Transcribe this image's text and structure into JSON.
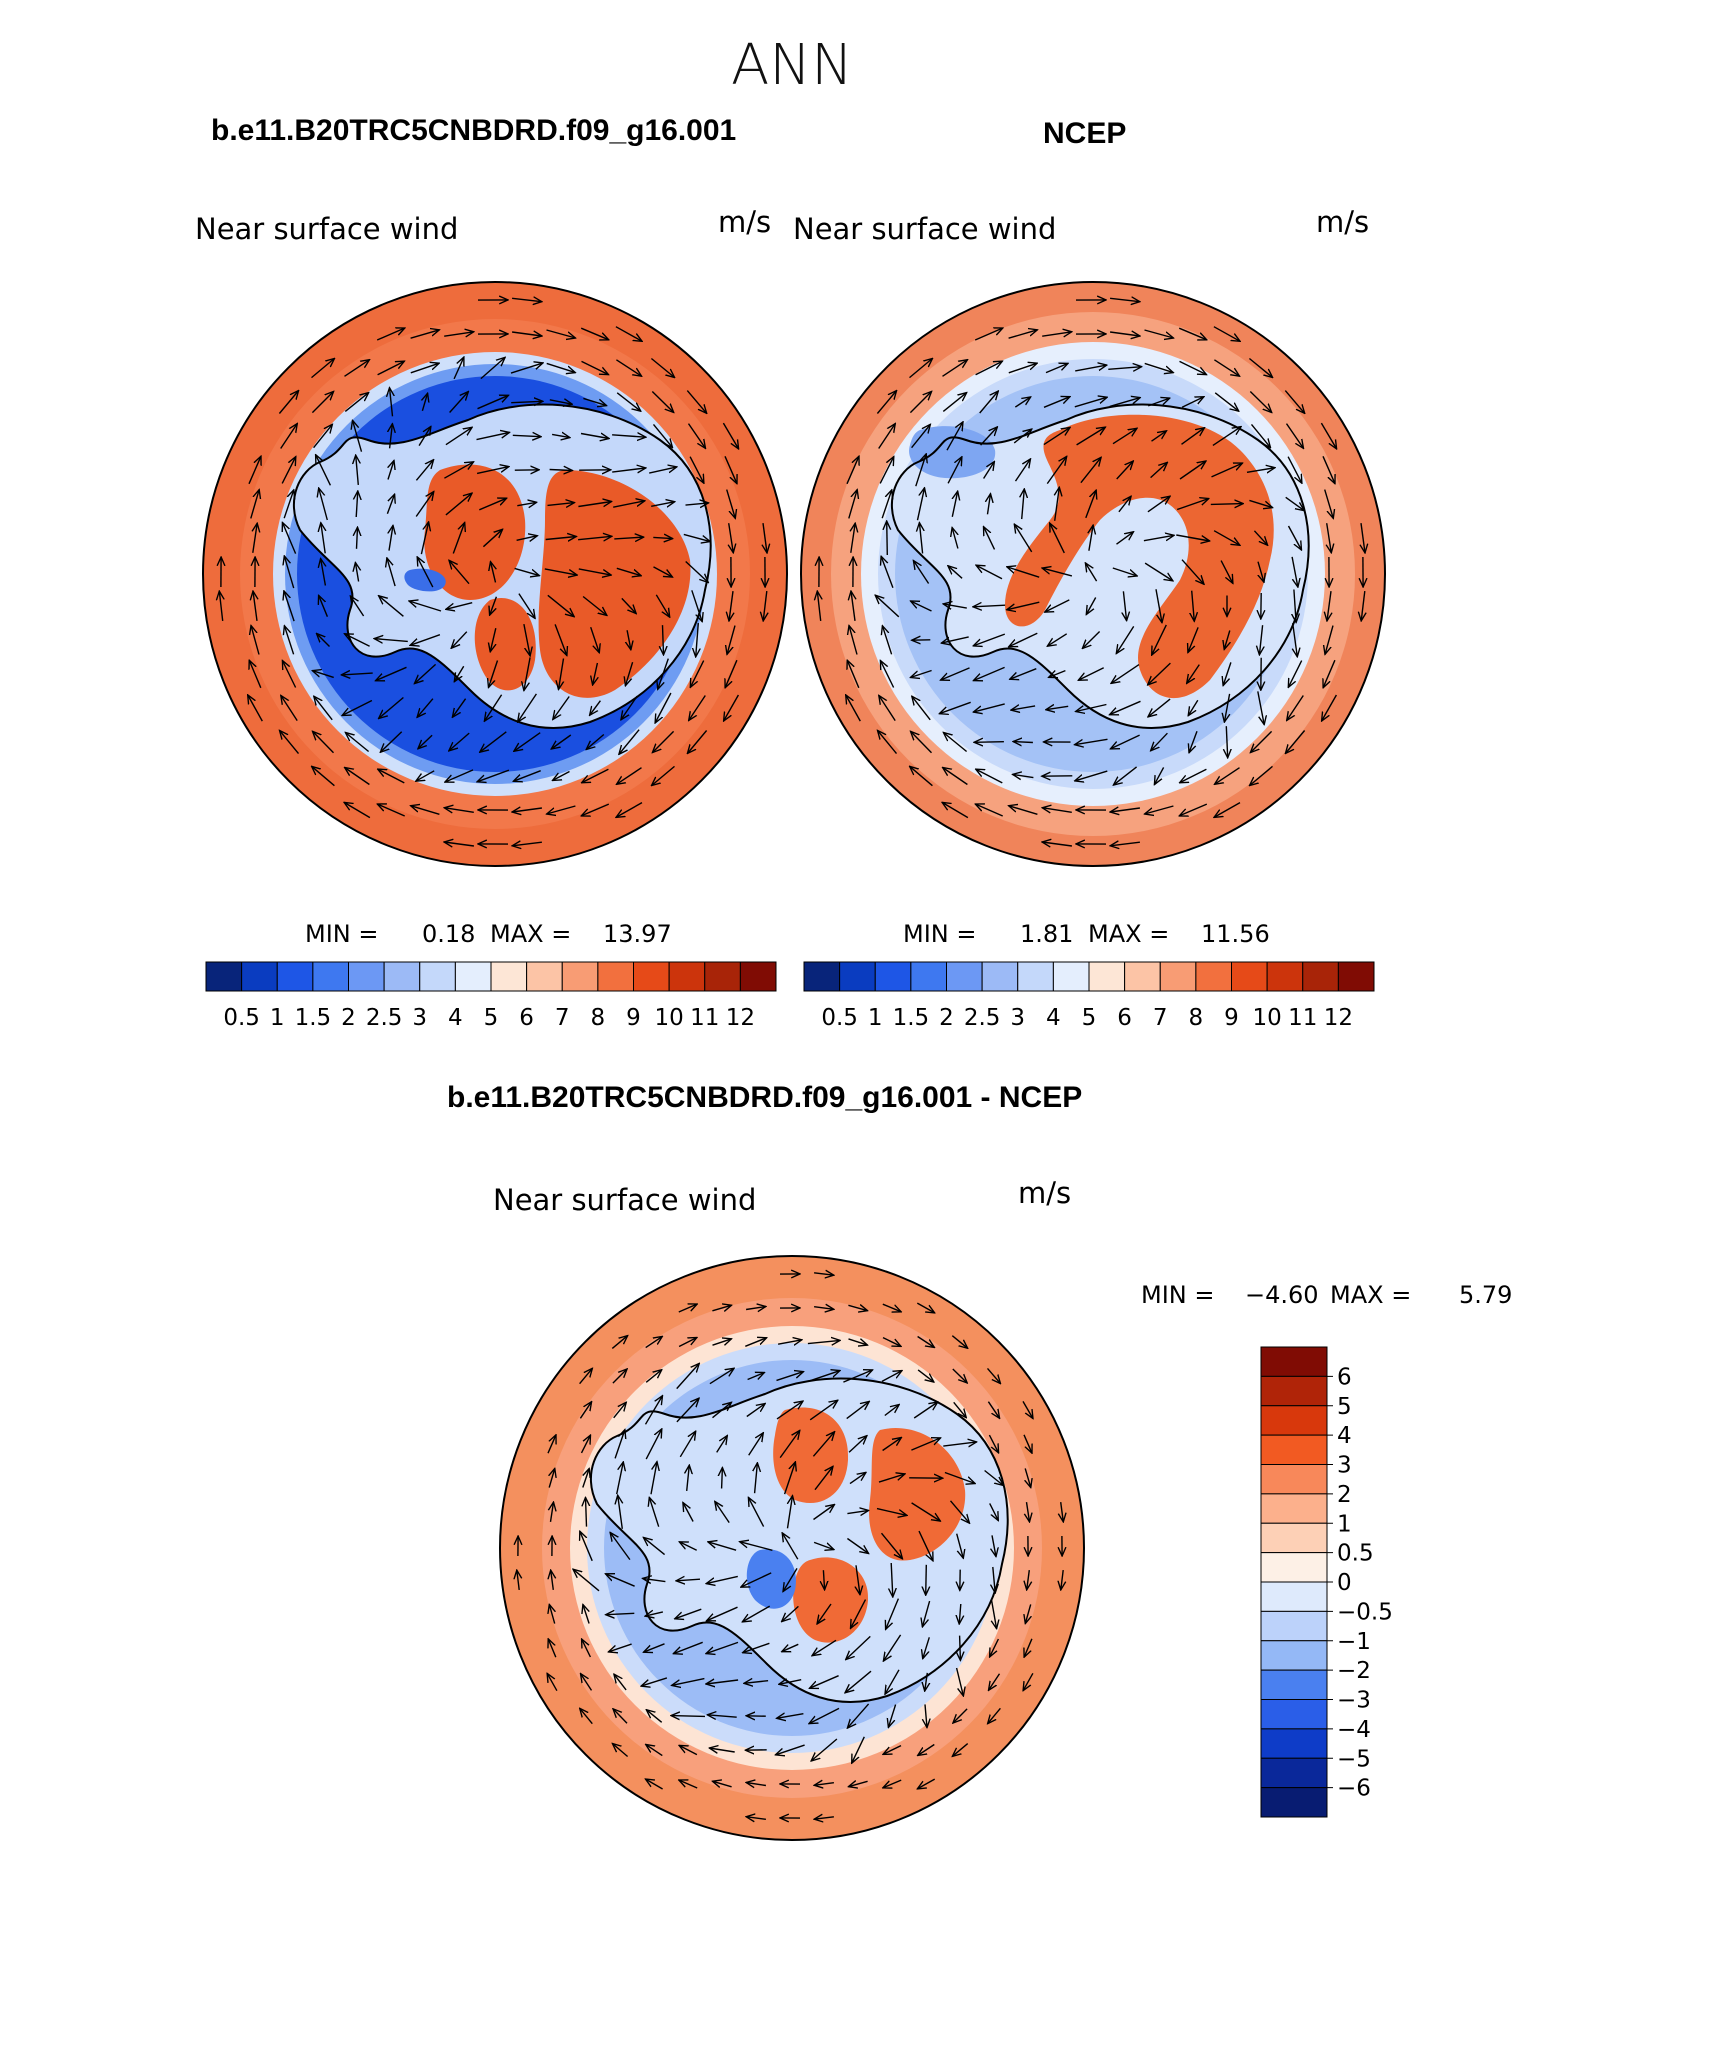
{
  "figure": {
    "title": "ANN",
    "panels": [
      {
        "id": "model",
        "case_title": "b.e11.B20TRC5CNBDRD.f09_g16.001",
        "left_label": "Near surface wind",
        "right_label": "m/s",
        "stats": {
          "min_label": "MIN =",
          "min": "0.18",
          "max_label": "MAX =",
          "max": "13.97"
        },
        "colorbar": {
          "orientation": "horizontal",
          "levels": [
            "0.5",
            "1",
            "1.5",
            "2",
            "2.5",
            "3",
            "4",
            "5",
            "6",
            "7",
            "8",
            "9",
            "10",
            "11",
            "12"
          ],
          "colors": [
            "#08247a",
            "#0a3cc0",
            "#1e56e6",
            "#3e78f0",
            "#6c98f4",
            "#9cbaf6",
            "#c4d8fa",
            "#e4eefd",
            "#fde6d6",
            "#fcc4a6",
            "#f89c74",
            "#f2703e",
            "#e64a18",
            "#cc340c",
            "#a82408",
            "#800c04"
          ]
        }
      },
      {
        "id": "obs",
        "case_title": "NCEP",
        "left_label": "Near surface wind",
        "right_label": "m/s",
        "stats": {
          "min_label": "MIN =",
          "min": "1.81",
          "max_label": "MAX =",
          "max": "11.56"
        },
        "colorbar": {
          "orientation": "horizontal",
          "levels": [
            "0.5",
            "1",
            "1.5",
            "2",
            "2.5",
            "3",
            "4",
            "5",
            "6",
            "7",
            "8",
            "9",
            "10",
            "11",
            "12"
          ],
          "colors": [
            "#08247a",
            "#0a3cc0",
            "#1e56e6",
            "#3e78f0",
            "#6c98f4",
            "#9cbaf6",
            "#c4d8fa",
            "#e4eefd",
            "#fde6d6",
            "#fcc4a6",
            "#f89c74",
            "#f2703e",
            "#e64a18",
            "#cc340c",
            "#a82408",
            "#800c04"
          ]
        }
      },
      {
        "id": "diff",
        "case_title": "b.e11.B20TRC5CNBDRD.f09_g16.001 - NCEP",
        "left_label": "Near surface wind",
        "right_label": "m/s",
        "stats": {
          "min_label": "MIN =",
          "min": "−4.60",
          "max_label": "MAX =",
          "max": "5.79"
        },
        "colorbar": {
          "orientation": "vertical",
          "levels": [
            "6",
            "5",
            "4",
            "3",
            "2",
            "1",
            "0.5",
            "0",
            "−0.5",
            "−1",
            "−2",
            "−3",
            "−4",
            "−5",
            "−6"
          ],
          "colors": [
            "#800c04",
            "#b02408",
            "#d8380c",
            "#f25a22",
            "#f8885a",
            "#fcb08c",
            "#fdd0b6",
            "#fdf0e6",
            "#deeafc",
            "#bcd2fa",
            "#94b8f6",
            "#4a80f0",
            "#2a5ee8",
            "#0e3cc8",
            "#0a289a",
            "#081c72"
          ]
        }
      }
    ]
  },
  "map_palette": {
    "model": {
      "ocean": "#f2784a",
      "ocean_outer": "#ee6c3c",
      "ring": "#1a4fe0",
      "ring_soft": "#6e9cf2",
      "ring_pale": "#cfe0fb",
      "land": "#c4d8fa",
      "land_hot": "#e95a28",
      "land_blue": "#3a6ee8"
    },
    "obs": {
      "ocean": "#f6a27e",
      "ocean_outer": "#f0845a",
      "ring": "#a4c2f6",
      "ring_soft": "#c8dafa",
      "ring_pale": "#e6effd",
      "land": "#d6e4fb",
      "land_hot": "#ec6632",
      "land_blue": "#7ea6f2"
    },
    "diff": {
      "ocean": "#f8a07c",
      "ocean_outer": "#f4905e",
      "ring": "#9cbcf6",
      "ring_soft": "#cbdcfa",
      "ring_pale": "#fde4d4",
      "land": "#cfe0fb",
      "land_hot": "#f06a36",
      "land_blue": "#4a80f0"
    }
  }
}
